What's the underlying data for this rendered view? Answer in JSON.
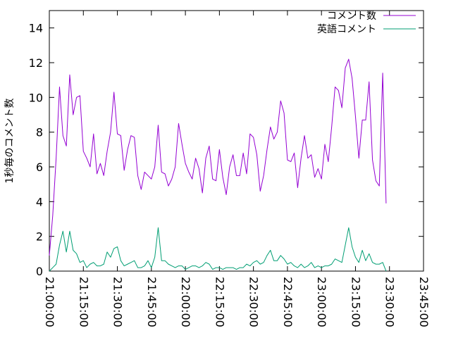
{
  "chart_data": {
    "type": "line",
    "ylabel": "1秒毎のコメント数",
    "ylim": [
      0,
      15
    ],
    "yticks": [
      0,
      2,
      4,
      6,
      8,
      10,
      12,
      14
    ],
    "xlim": [
      "21:00:00",
      "23:45:00"
    ],
    "xticks": [
      "21:00:00",
      "21:15:00",
      "21:30:00",
      "21:45:00",
      "22:00:00",
      "22:15:00",
      "22:30:00",
      "22:45:00",
      "23:00:00",
      "23:15:00",
      "23:30:00",
      "23:45:00"
    ],
    "grid": false,
    "legend_position": "top-right",
    "sample_interval_seconds": 90,
    "series": [
      {
        "name": "コメント数",
        "color": "#9400d3",
        "values": [
          0.9,
          3.2,
          6.5,
          10.6,
          7.8,
          7.2,
          11.3,
          9.0,
          10.0,
          10.1,
          6.9,
          6.5,
          6.0,
          7.9,
          5.6,
          6.2,
          5.5,
          6.9,
          8.0,
          10.3,
          7.9,
          7.8,
          5.8,
          7.0,
          7.8,
          7.7,
          5.5,
          4.7,
          5.7,
          5.5,
          5.3,
          6.0,
          8.4,
          5.7,
          5.6,
          4.9,
          5.3,
          6.0,
          8.5,
          7.3,
          6.2,
          5.7,
          5.3,
          6.5,
          5.9,
          4.5,
          6.5,
          7.2,
          5.3,
          5.2,
          7.0,
          5.4,
          4.4,
          6.0,
          6.7,
          5.5,
          5.5,
          6.8,
          5.6,
          7.9,
          7.7,
          6.7,
          4.6,
          5.5,
          7.0,
          8.3,
          7.6,
          8.0,
          9.8,
          9.1,
          6.4,
          6.3,
          6.8,
          4.8,
          6.5,
          7.8,
          6.5,
          6.7,
          5.4,
          5.9,
          5.3,
          7.3,
          6.3,
          8.3,
          10.6,
          10.4,
          9.4,
          11.7,
          12.2,
          11.1,
          8.9,
          6.5,
          8.7,
          8.7,
          10.9,
          6.4,
          5.2,
          4.9,
          11.4,
          3.9
        ]
      },
      {
        "name": "英語コメント",
        "color": "#009e73",
        "values": [
          0.0,
          0.2,
          0.4,
          1.5,
          2.3,
          1.1,
          2.3,
          1.2,
          1.0,
          0.5,
          0.6,
          0.2,
          0.4,
          0.5,
          0.3,
          0.3,
          0.4,
          1.1,
          0.8,
          1.3,
          1.4,
          0.6,
          0.3,
          0.4,
          0.5,
          0.6,
          0.2,
          0.2,
          0.3,
          0.6,
          0.2,
          0.8,
          2.5,
          0.6,
          0.6,
          0.4,
          0.3,
          0.2,
          0.3,
          0.3,
          0.1,
          0.2,
          0.3,
          0.3,
          0.2,
          0.3,
          0.5,
          0.4,
          0.1,
          0.2,
          0.2,
          0.1,
          0.2,
          0.2,
          0.2,
          0.1,
          0.2,
          0.2,
          0.4,
          0.3,
          0.5,
          0.6,
          0.4,
          0.5,
          0.9,
          1.2,
          0.6,
          0.6,
          0.9,
          0.7,
          0.4,
          0.5,
          0.3,
          0.2,
          0.4,
          0.2,
          0.3,
          0.5,
          0.2,
          0.3,
          0.2,
          0.3,
          0.3,
          0.4,
          0.7,
          0.6,
          0.5,
          1.5,
          2.5,
          1.4,
          0.8,
          0.5,
          1.2,
          0.6,
          1.0,
          0.5,
          0.4,
          0.4,
          0.5,
          0.0
        ]
      }
    ]
  }
}
